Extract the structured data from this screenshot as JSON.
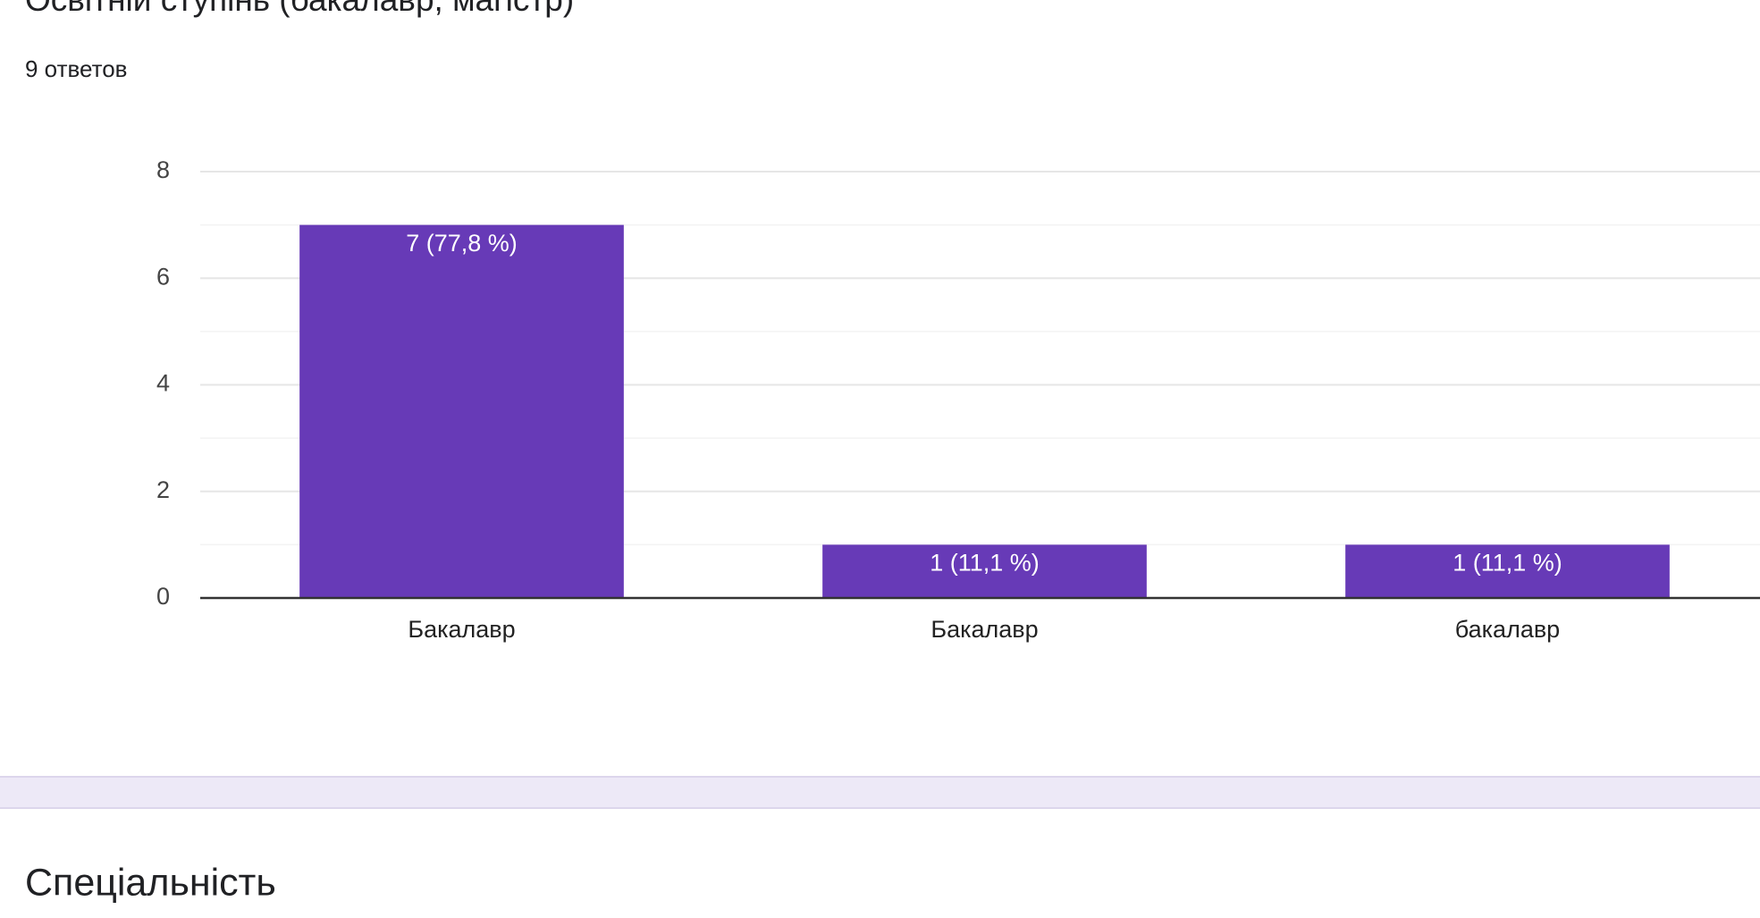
{
  "chart_data": {
    "type": "bar",
    "title": "Освітній ступінь (бакалавр, магістр)",
    "subtitle": "9 ответов",
    "categories": [
      "Бакалавр",
      "Бакалавр",
      "бакалавр"
    ],
    "values": [
      7,
      1,
      1
    ],
    "value_labels": [
      "7 (77,8 %)",
      "1 (11,1 %)",
      "1 (11,1 %)"
    ],
    "color": "#673ab7",
    "ylim": [
      0,
      8
    ],
    "yticks": [
      0,
      2,
      4,
      6,
      8
    ],
    "minor_yticks": [
      1,
      3,
      5,
      7
    ],
    "grid": true
  },
  "next_section": {
    "title": "Спеціальність"
  }
}
